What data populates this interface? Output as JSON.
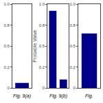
{
  "chart_data": [
    {
      "type": "bar",
      "title": "Fig. 9(a)",
      "categories": [
        null
      ],
      "values": [
        0.06
      ],
      "color": "#00008B",
      "ylim": [
        0,
        1.0
      ],
      "yticks": [
        0,
        {
          "value": 0.25,
          "label": "0.2"
        },
        0.5,
        {
          "value": 0.75,
          "label": "0.8"
        },
        {
          "value": 1.0,
          "label": "1.0"
        }
      ],
      "grid": false,
      "tick_labels": "y"
    },
    {
      "type": "bar",
      "title": "Fig. 9(b)",
      "ylabel": "Probable Value",
      "categories": [
        null,
        null
      ],
      "values": [
        0.92,
        0.1
      ],
      "color": "#00008B",
      "ylim": [
        0,
        1.0
      ],
      "yticks": [
        0,
        {
          "value": 0.25,
          "label": "0.2"
        },
        0.5,
        {
          "value": 0.75,
          "label": "0.8"
        },
        {
          "value": 1.0,
          "label": "1.0"
        }
      ],
      "grid": false,
      "tick_labels": "y"
    },
    {
      "type": "bar",
      "title": "Fig.",
      "categories": [
        null
      ],
      "values": [
        0.65
      ],
      "color": "#00008B",
      "ylim": [
        0,
        1.0
      ],
      "yticks": [
        0,
        {
          "value": 0.25,
          "label": "0.2"
        },
        0.5,
        {
          "value": 0.75,
          "label": "0.8"
        },
        {
          "value": 1.0,
          "label": "1.0"
        }
      ],
      "grid": false,
      "tick_labels": "y"
    }
  ]
}
